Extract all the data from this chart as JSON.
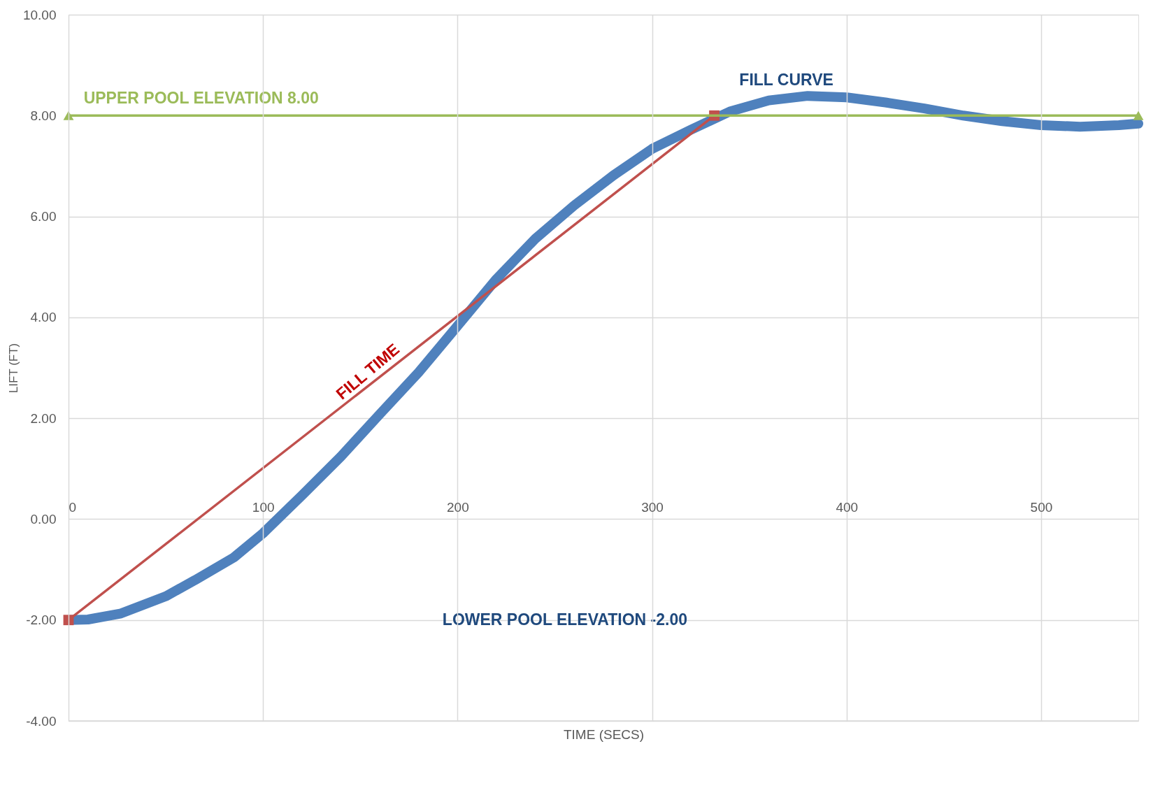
{
  "chart_data": {
    "type": "line",
    "xlabel": "TIME (SECS)",
    "ylabel": "LIFT  (FT)",
    "xlim": [
      0,
      550
    ],
    "xticks": [
      0,
      100,
      200,
      300,
      400,
      500
    ],
    "ylim": [
      -4,
      10
    ],
    "yticks": [
      {
        "value": -4,
        "label": "-4.00"
      },
      {
        "value": -2,
        "label": "-2.00"
      },
      {
        "value": 0,
        "label": "0.00"
      },
      {
        "value": 2,
        "label": "2.00"
      },
      {
        "value": 4,
        "label": "4.00"
      },
      {
        "value": 6,
        "label": "6.00"
      },
      {
        "value": 8,
        "label": "8.00"
      },
      {
        "value": 10,
        "label": "10.00"
      }
    ],
    "grid": true,
    "series": [
      {
        "color": "#4f81bd",
        "marker": "none",
        "x": [
          0,
          10,
          27,
          50,
          65,
          85,
          100,
          120,
          140,
          160,
          180,
          200,
          220,
          240,
          260,
          280,
          300,
          320,
          340,
          360,
          380,
          400,
          420,
          440,
          460,
          480,
          500,
          520,
          540,
          550
        ],
        "values": [
          -2.0,
          -1.99,
          -1.87,
          -1.53,
          -1.21,
          -0.76,
          -0.28,
          0.47,
          1.24,
          2.08,
          2.91,
          3.83,
          4.76,
          5.56,
          6.22,
          6.81,
          7.34,
          7.72,
          8.08,
          8.3,
          8.39,
          8.36,
          8.26,
          8.14,
          8.0,
          7.89,
          7.81,
          7.78,
          7.81,
          7.84
        ]
      },
      {
        "color": "#c0504d",
        "marker": "square",
        "x": [
          0,
          332
        ],
        "values": [
          -2,
          8
        ]
      },
      {
        "color": "#9bbb59",
        "marker": "triangle",
        "x": [
          0,
          550
        ],
        "values": [
          8,
          8
        ]
      }
    ],
    "annotations": [
      "UPPER POOL ELEVATION 8.00",
      "FILL CURVE",
      "FILL TIME",
      "LOWER POOL ELEVATION -2.00"
    ]
  }
}
